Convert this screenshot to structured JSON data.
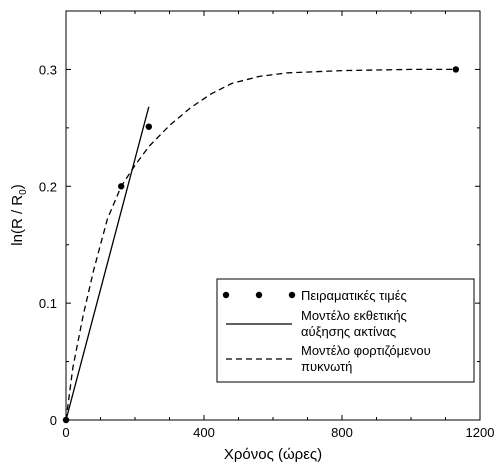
{
  "chart_data": {
    "type": "line",
    "xlabel": "Χρόνος (ώρες)",
    "ylabel": {
      "main": "ln(R / R",
      "sub": "0",
      "close": ")"
    },
    "xlim": [
      0,
      1200
    ],
    "ylim": [
      0,
      0.35
    ],
    "xticks": [
      0,
      400,
      800,
      1200
    ],
    "xtick_labels": [
      "0",
      "400",
      "800",
      "1200"
    ],
    "yticks": [
      0,
      0.1,
      0.2,
      0.3
    ],
    "ytick_labels": [
      "0",
      "0.1",
      "0.2",
      "0.3"
    ],
    "grid": false,
    "legend_position": "bottom-right",
    "series": [
      {
        "name": "Πειραματικές τιμές",
        "style": "markers",
        "color": "#000000",
        "points": [
          [
            0,
            0
          ],
          [
            160,
            0.2
          ],
          [
            240,
            0.251
          ],
          [
            1130,
            0.3
          ]
        ]
      },
      {
        "name": "Μοντέλο εκθετικής αύξησης ακτίνας",
        "name_lines": [
          "Μοντέλο εκθετικής",
          "αύξησης ακτίνας"
        ],
        "style": "solid",
        "color": "#000000",
        "points": [
          [
            0,
            0
          ],
          [
            240,
            0.268
          ]
        ]
      },
      {
        "name": "Μοντέλο φορτιζόμενου πυκνωτή",
        "name_lines": [
          "Μοντέλο φορτιζόμενου",
          "πυκνωτή"
        ],
        "style": "dashed",
        "color": "#000000",
        "points": [
          [
            0,
            0
          ],
          [
            20,
            0.045
          ],
          [
            50,
            0.09
          ],
          [
            80,
            0.128
          ],
          [
            120,
            0.172
          ],
          [
            160,
            0.2
          ],
          [
            200,
            0.218
          ],
          [
            240,
            0.234
          ],
          [
            300,
            0.252
          ],
          [
            360,
            0.267
          ],
          [
            420,
            0.279
          ],
          [
            480,
            0.288
          ],
          [
            560,
            0.294
          ],
          [
            640,
            0.297
          ],
          [
            800,
            0.299
          ],
          [
            1000,
            0.3
          ],
          [
            1130,
            0.3
          ]
        ]
      }
    ]
  }
}
